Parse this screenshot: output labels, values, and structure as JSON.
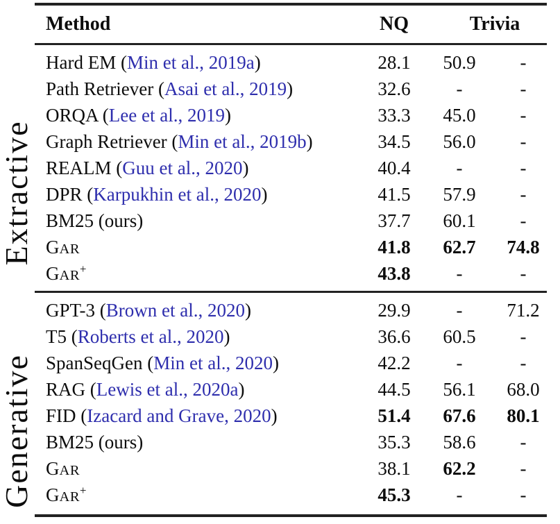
{
  "table": {
    "headers": {
      "method": "Method",
      "nq": "NQ",
      "trivia": "Trivia"
    },
    "sections": [
      {
        "label": "Extractive",
        "rows": [
          {
            "name": "Hard EM",
            "cite": "Min et al., 2019a",
            "values": [
              "28.1",
              "50.9",
              "-"
            ],
            "bold": [
              false,
              false,
              false
            ]
          },
          {
            "name": "Path Retriever",
            "cite": "Asai et al., 2019",
            "values": [
              "32.6",
              "-",
              "-"
            ],
            "bold": [
              false,
              false,
              false
            ]
          },
          {
            "name": "ORQA",
            "cite": "Lee et al., 2019",
            "values": [
              "33.3",
              "45.0",
              "-"
            ],
            "bold": [
              false,
              false,
              false
            ]
          },
          {
            "name": "Graph Retriever",
            "cite": "Min et al., 2019b",
            "values": [
              "34.5",
              "56.0",
              "-"
            ],
            "bold": [
              false,
              false,
              false
            ]
          },
          {
            "name": "REALM",
            "cite": "Guu et al., 2020",
            "values": [
              "40.4",
              "-",
              "-"
            ],
            "bold": [
              false,
              false,
              false
            ]
          },
          {
            "name": "DPR",
            "cite": "Karpukhin et al., 2020",
            "values": [
              "41.5",
              "57.9",
              "-"
            ],
            "bold": [
              false,
              false,
              false
            ]
          },
          {
            "name": "BM25 (ours)",
            "cite": null,
            "values": [
              "37.7",
              "60.1",
              "-"
            ],
            "bold": [
              false,
              false,
              false
            ]
          },
          {
            "name": "GAR",
            "smallcaps": true,
            "cite": null,
            "values": [
              "41.8",
              "62.7",
              "74.8"
            ],
            "bold": [
              true,
              true,
              true
            ]
          },
          {
            "name": "GAR",
            "smallcaps": true,
            "sup": "+",
            "cite": null,
            "values": [
              "43.8",
              "-",
              "-"
            ],
            "bold": [
              true,
              false,
              false
            ]
          }
        ]
      },
      {
        "label": "Generative",
        "rows": [
          {
            "name": "GPT-3",
            "cite": "Brown et al., 2020",
            "values": [
              "29.9",
              "-",
              "71.2"
            ],
            "bold": [
              false,
              false,
              false
            ]
          },
          {
            "name": "T5",
            "cite": "Roberts et al., 2020",
            "values": [
              "36.6",
              "60.5",
              "-"
            ],
            "bold": [
              false,
              false,
              false
            ]
          },
          {
            "name": "SpanSeqGen",
            "cite": "Min et al., 2020",
            "values": [
              "42.2",
              "-",
              "-"
            ],
            "bold": [
              false,
              false,
              false
            ]
          },
          {
            "name": "RAG",
            "cite": "Lewis et al., 2020a",
            "values": [
              "44.5",
              "56.1",
              "68.0"
            ],
            "bold": [
              false,
              false,
              false
            ]
          },
          {
            "name": "FID",
            "cite": "Izacard and Grave, 2020",
            "values": [
              "51.4",
              "67.6",
              "80.1"
            ],
            "bold": [
              true,
              true,
              true
            ]
          },
          {
            "name": "BM25 (ours)",
            "cite": null,
            "values": [
              "35.3",
              "58.6",
              "-"
            ],
            "bold": [
              false,
              false,
              false
            ]
          },
          {
            "name": "GAR",
            "smallcaps": true,
            "cite": null,
            "values": [
              "38.1",
              "62.2",
              "-"
            ],
            "bold": [
              false,
              true,
              false
            ]
          },
          {
            "name": "GAR",
            "smallcaps": true,
            "sup": "+",
            "cite": null,
            "values": [
              "45.3",
              "-",
              "-"
            ],
            "bold": [
              true,
              false,
              false
            ]
          }
        ]
      }
    ]
  },
  "colors": {
    "citation_blue": "#2e2ead",
    "text": "#0d0d0d",
    "rule": "#222222"
  }
}
